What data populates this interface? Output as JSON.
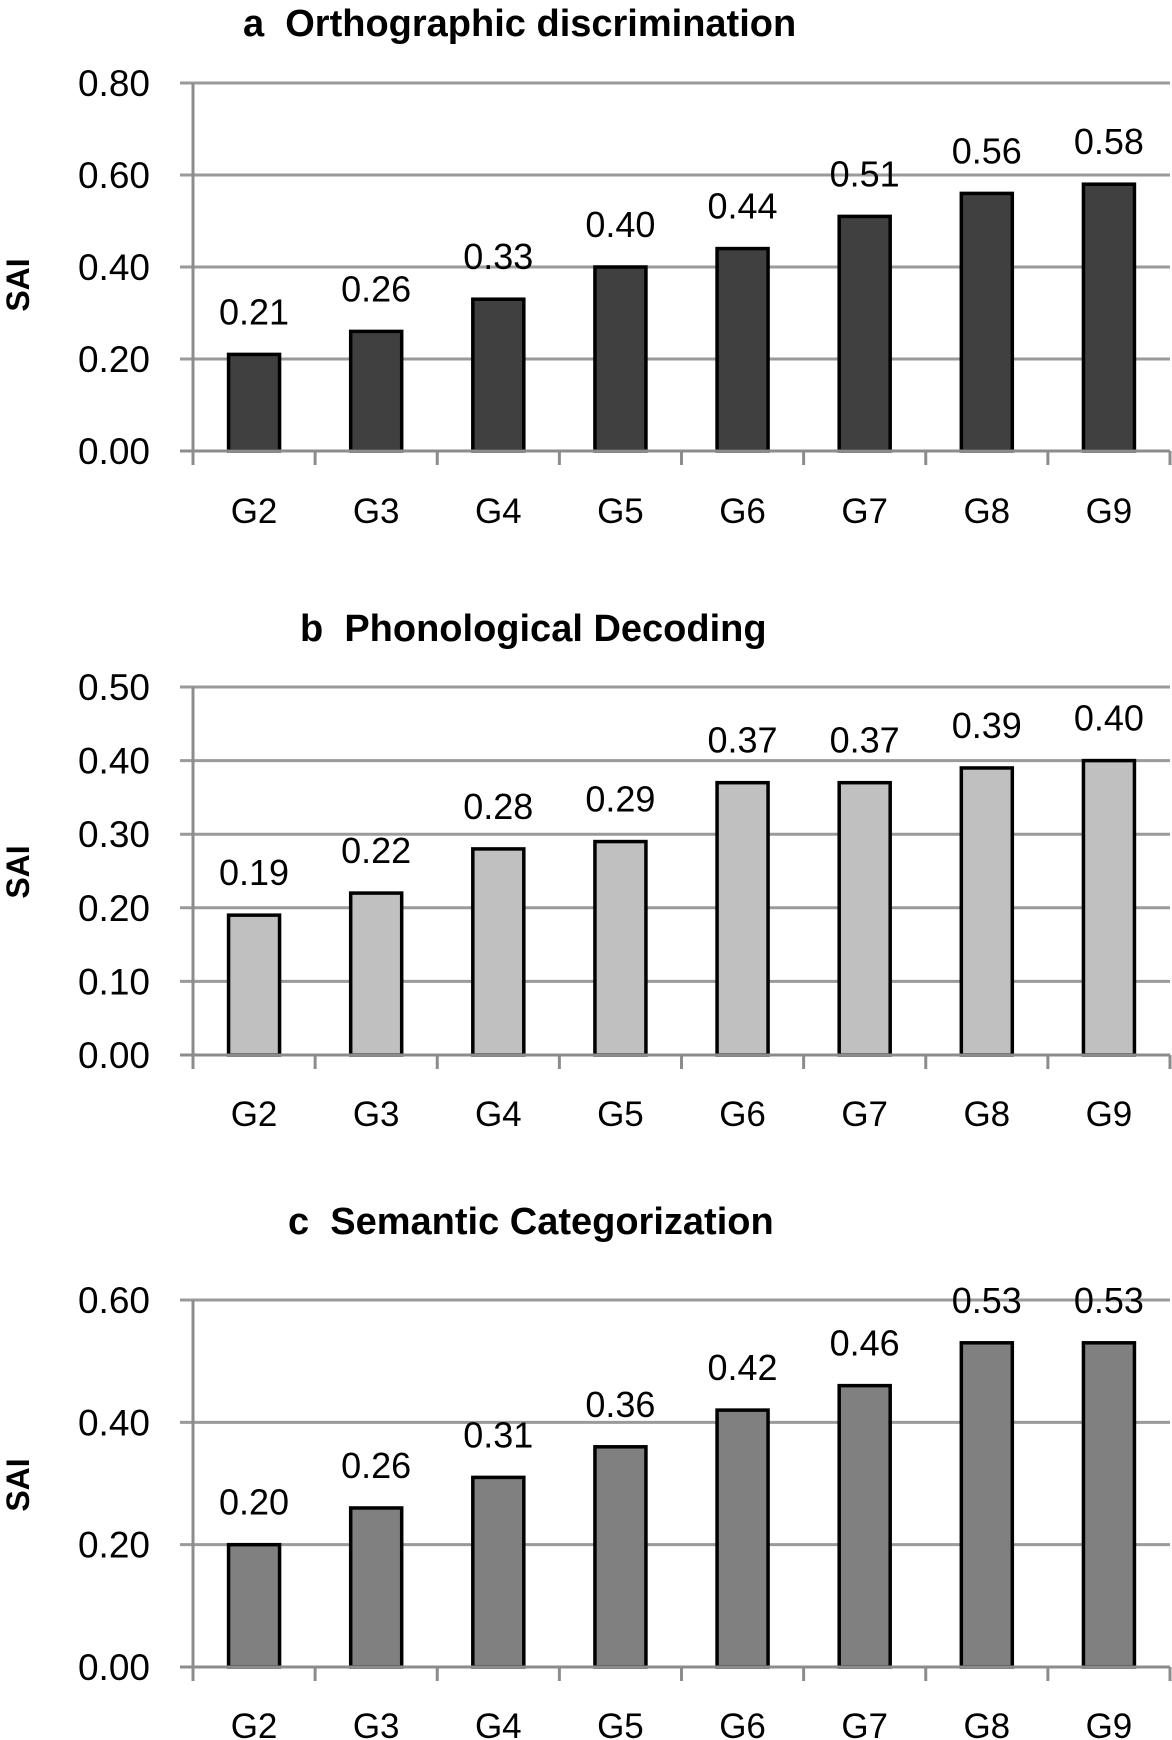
{
  "chart_data": [
    {
      "type": "bar",
      "panel": "a",
      "title": "a  Orthographic discrimination",
      "xlabel": "",
      "ylabel": "SAI",
      "categories": [
        "G2",
        "G3",
        "G4",
        "G5",
        "G6",
        "G7",
        "G8",
        "G9"
      ],
      "values": [
        0.21,
        0.26,
        0.33,
        0.4,
        0.44,
        0.51,
        0.56,
        0.58
      ],
      "data_labels": [
        "0.21",
        "0.26",
        "0.33",
        "0.40",
        "0.44",
        "0.51",
        "0.56",
        "0.58"
      ],
      "ylim": [
        0,
        0.8
      ],
      "yticks": [
        "0.00",
        "0.20",
        "0.40",
        "0.60",
        "0.80"
      ],
      "ytick_values": [
        0,
        0.2,
        0.4,
        0.6,
        0.8
      ],
      "grid": true,
      "bar_color": "#404040"
    },
    {
      "type": "bar",
      "panel": "b",
      "title": "b  Phonological Decoding",
      "xlabel": "",
      "ylabel": "SAI",
      "categories": [
        "G2",
        "G3",
        "G4",
        "G5",
        "G6",
        "G7",
        "G8",
        "G9"
      ],
      "values": [
        0.19,
        0.22,
        0.28,
        0.29,
        0.37,
        0.37,
        0.39,
        0.4
      ],
      "data_labels": [
        "0.19",
        "0.22",
        "0.28",
        "0.29",
        "0.37",
        "0.37",
        "0.39",
        "0.40"
      ],
      "ylim": [
        0,
        0.5
      ],
      "yticks": [
        "0.00",
        "0.10",
        "0.20",
        "0.30",
        "0.40",
        "0.50"
      ],
      "ytick_values": [
        0,
        0.1,
        0.2,
        0.3,
        0.4,
        0.5
      ],
      "grid": true,
      "bar_color": "#c0c0c0"
    },
    {
      "type": "bar",
      "panel": "c",
      "title": "c  Semantic Categorization",
      "xlabel": "",
      "ylabel": "SAI",
      "categories": [
        "G2",
        "G3",
        "G4",
        "G5",
        "G6",
        "G7",
        "G8",
        "G9"
      ],
      "values": [
        0.2,
        0.26,
        0.31,
        0.36,
        0.42,
        0.46,
        0.53,
        0.53
      ],
      "data_labels": [
        "0.20",
        "0.26",
        "0.31",
        "0.36",
        "0.42",
        "0.46",
        "0.53",
        "0.53"
      ],
      "ylim": [
        0,
        0.6
      ],
      "yticks": [
        "0.00",
        "0.20",
        "0.40",
        "0.60"
      ],
      "ytick_values": [
        0,
        0.2,
        0.4,
        0.6
      ],
      "grid": true,
      "bar_color": "#808080"
    }
  ]
}
